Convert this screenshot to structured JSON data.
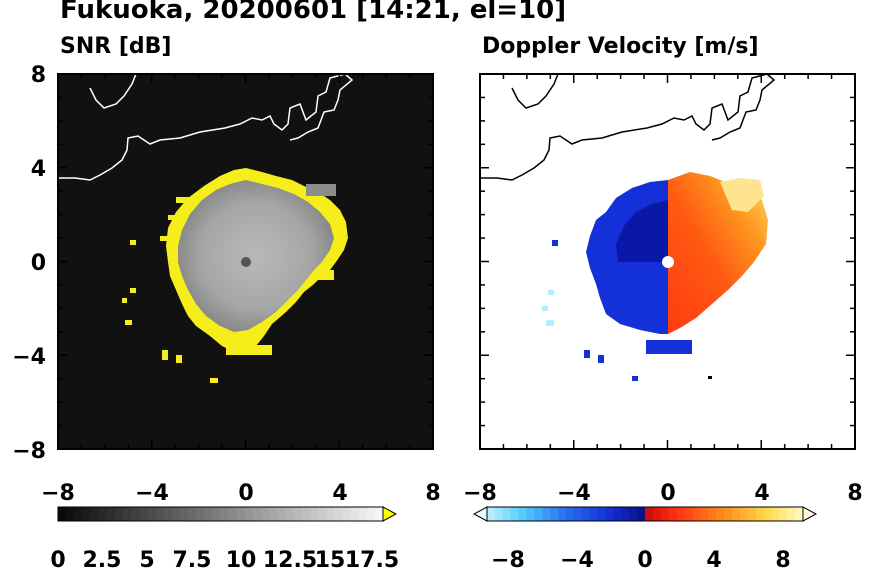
{
  "figure": {
    "title": "Fukuoka, 20200601 [14:21, el=10]"
  },
  "chart_data": [
    {
      "type": "heatmap",
      "title": "SNR [dB]",
      "x_ticks": [
        "−8",
        "−4",
        "0",
        "4",
        "8"
      ],
      "y_ticks": [
        "8",
        "4",
        "0",
        "−4",
        "−8"
      ],
      "xlim": [
        -8,
        8
      ],
      "ylim": [
        -8,
        8
      ],
      "colorbar": {
        "ticks": [
          "0",
          "2.5",
          "5",
          "7.5",
          "10",
          "12.5",
          "15",
          "17.5"
        ],
        "range": [
          0,
          20
        ],
        "extend": "max",
        "colors": {
          "low": "#000000",
          "high": "#ffffff",
          "extend": "#ffff00"
        }
      }
    },
    {
      "type": "heatmap",
      "title": "Doppler Velocity [m/s]",
      "x_ticks": [
        "−8",
        "−4",
        "0",
        "4",
        "8"
      ],
      "y_ticks": [],
      "xlim": [
        -8,
        8
      ],
      "ylim": [
        -8,
        8
      ],
      "colorbar": {
        "ticks": [
          "−8",
          "−4",
          "0",
          "4",
          "8"
        ],
        "range": [
          -10,
          10
        ],
        "extend": "both",
        "colors": {
          "low": "#0000a0",
          "mid_neg": "#3a70ff",
          "light_neg": "#aef0ff",
          "mid_pos": "#ff3a1a",
          "high": "#fff8a0"
        }
      }
    }
  ]
}
